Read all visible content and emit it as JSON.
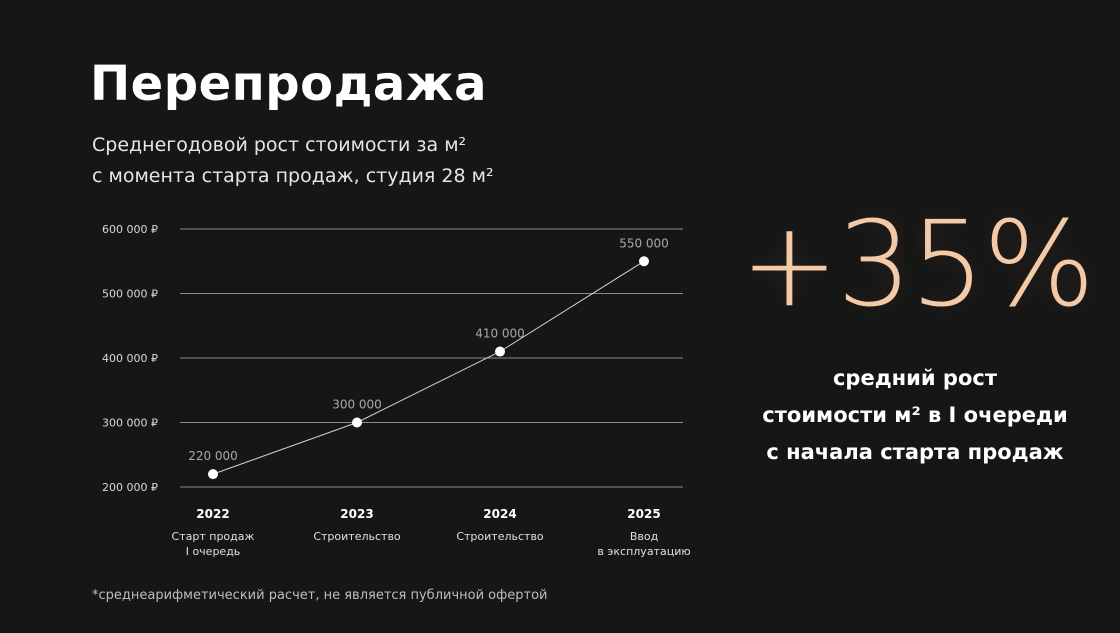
{
  "header": {
    "title": "Перепродажа",
    "subtitle_line1": "Среднегодовой рост стоимости за м²",
    "subtitle_line2": "с момента старта продаж, студия 28 м²"
  },
  "highlight": {
    "value": "+35%",
    "desc_line1": "средний рост",
    "desc_line2": "стоимости м² в I очереди",
    "desc_line3": "с начала старта продаж"
  },
  "footnote": "*среднеарифметический расчет, не является публичной офертой",
  "colors": {
    "background": "#161616",
    "accent": "#f3c9a6",
    "gridline": "#8a8a8a",
    "line": "#d0d0d0"
  },
  "chart_data": {
    "type": "line",
    "x": [
      "2022",
      "2023",
      "2024",
      "2025"
    ],
    "x_sublabels": [
      [
        "Старт продаж",
        "I очередь"
      ],
      [
        "Строительство"
      ],
      [
        "Строительство"
      ],
      [
        "Ввод",
        "в эксплуатацию"
      ]
    ],
    "series": [
      {
        "values": [
          220000,
          300000,
          410000,
          550000
        ],
        "labels": [
          "220 000",
          "300 000",
          "410 000",
          "550 000"
        ]
      }
    ],
    "yticks": [
      200000,
      300000,
      400000,
      500000,
      600000
    ],
    "ytick_labels": [
      "200 000 ₽",
      "300 000 ₽",
      "400 000 ₽",
      "500 000 ₽",
      "600 000 ₽"
    ],
    "ylim": [
      200000,
      600000
    ],
    "grid": true
  }
}
